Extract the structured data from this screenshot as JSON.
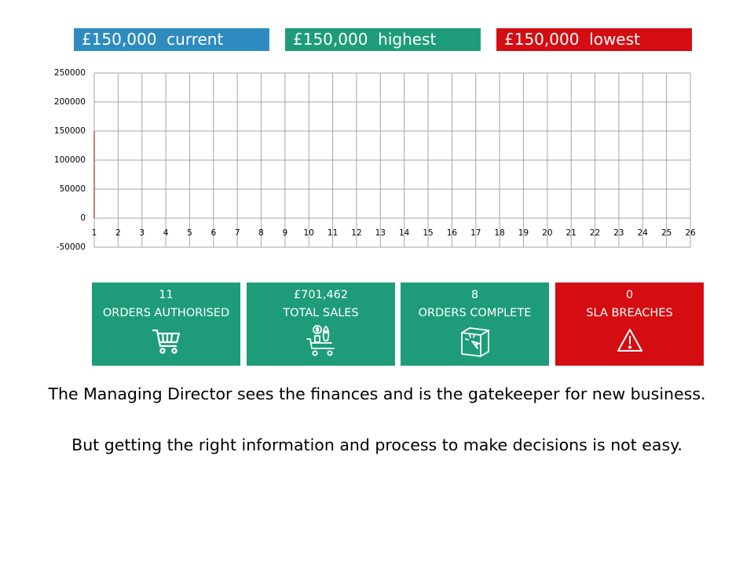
{
  "banners": [
    {
      "text": "£150,000  current",
      "color": "#2e8bc0"
    },
    {
      "text": "£150,000  highest",
      "color": "#1e9c7a"
    },
    {
      "text": "£150,000  lowest",
      "color": "#d40d12"
    }
  ],
  "chart_data": {
    "type": "line",
    "x": [
      1,
      2,
      3,
      4,
      5,
      6,
      7,
      8,
      9,
      10,
      11,
      12,
      13,
      14,
      15,
      16,
      17,
      18,
      19,
      20,
      21,
      22,
      23,
      24,
      25,
      26
    ],
    "y_ticks": [
      "250000",
      "200000",
      "150000",
      "100000",
      "50000",
      "0",
      "-50000"
    ],
    "ylim": [
      -50000,
      250000
    ],
    "xlim": [
      1,
      26
    ],
    "grid": true,
    "series": [
      {
        "color": "#c0504d",
        "points": [
          [
            1,
            0
          ],
          [
            1,
            150000
          ]
        ]
      }
    ]
  },
  "kpis": [
    {
      "value": "11",
      "label": "ORDERS AUTHORISED",
      "icon": "shopping-cart-icon",
      "color": "#1e9c7a"
    },
    {
      "value": "£701,462",
      "label": "TOTAL SALES",
      "icon": "sales-cart-icon",
      "color": "#1e9c7a"
    },
    {
      "value": "8",
      "label": "ORDERS COMPLETE",
      "icon": "box-click-icon",
      "color": "#1e9c7a"
    },
    {
      "value": "0",
      "label": "SLA BREACHES",
      "icon": "warning-icon",
      "color": "#d40d12"
    }
  ],
  "captions": {
    "line1": "The Managing Director sees the finances and is the gatekeeper for new business.",
    "line2": "But getting the right information and process to make decisions is not easy."
  }
}
